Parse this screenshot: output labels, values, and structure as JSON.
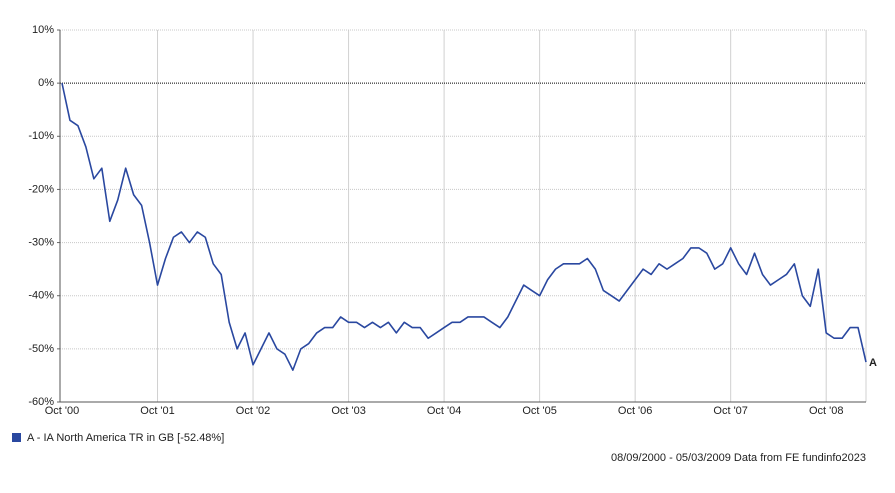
{
  "chart_data": {
    "type": "line",
    "categories": [
      "Oct '00",
      null,
      null,
      null,
      null,
      null,
      null,
      null,
      null,
      null,
      null,
      null,
      "Oct '01",
      null,
      null,
      null,
      null,
      null,
      null,
      null,
      null,
      null,
      null,
      null,
      "Oct '02",
      null,
      null,
      null,
      null,
      null,
      null,
      null,
      null,
      null,
      null,
      null,
      "Oct '03",
      null,
      null,
      null,
      null,
      null,
      null,
      null,
      null,
      null,
      null,
      null,
      "Oct '04",
      null,
      null,
      null,
      null,
      null,
      null,
      null,
      null,
      null,
      null,
      null,
      "Oct '05",
      null,
      null,
      null,
      null,
      null,
      null,
      null,
      null,
      null,
      null,
      null,
      "Oct '06",
      null,
      null,
      null,
      null,
      null,
      null,
      null,
      null,
      null,
      null,
      null,
      "Oct '07",
      null,
      null,
      null,
      null,
      null,
      null,
      null,
      null,
      null,
      null,
      null,
      "Oct '08",
      null,
      null,
      null,
      null,
      null
    ],
    "series": [
      {
        "name": "A - IA North America TR in GB [-52.48%]",
        "marker_label": "A",
        "color": "#2a48a0",
        "values": [
          0,
          -7,
          -8,
          -12,
          -18,
          -16,
          -26,
          -22,
          -16,
          -21,
          -23,
          -30,
          -38,
          -33,
          -29,
          -28,
          -30,
          -28,
          -29,
          -34,
          -36,
          -45,
          -50,
          -47,
          -53,
          -50,
          -47,
          -50,
          -51,
          -54,
          -50,
          -49,
          -47,
          -46,
          -46,
          -44,
          -45,
          -45,
          -46,
          -45,
          -46,
          -45,
          -47,
          -45,
          -46,
          -46,
          -48,
          -47,
          -46,
          -45,
          -45,
          -44,
          -44,
          -44,
          -45,
          -46,
          -44,
          -41,
          -38,
          -39,
          -40,
          -37,
          -35,
          -34,
          -34,
          -34,
          -33,
          -35,
          -39,
          -40,
          -41,
          -39,
          -37,
          -35,
          -36,
          -34,
          -35,
          -34,
          -33,
          -31,
          -31,
          -32,
          -35,
          -34,
          -31,
          -34,
          -36,
          -32,
          -36,
          -38,
          -37,
          -36,
          -34,
          -40,
          -42,
          -35,
          -47,
          -48,
          -48,
          -46,
          -46,
          -52.48
        ]
      }
    ],
    "ylim": [
      -60,
      10
    ],
    "yticks": [
      {
        "value": -60,
        "label": "-60%"
      },
      {
        "value": -50,
        "label": "-50%"
      },
      {
        "value": -40,
        "label": "-40%"
      },
      {
        "value": -30,
        "label": "-30%"
      },
      {
        "value": -20,
        "label": "-20%"
      },
      {
        "value": -10,
        "label": "-10%"
      },
      {
        "value": 0,
        "label": "0%"
      },
      {
        "value": 10,
        "label": "10%"
      }
    ],
    "grid": true,
    "footer": "08/09/2000 - 05/03/2009 Data from FE fundinfo2023"
  }
}
